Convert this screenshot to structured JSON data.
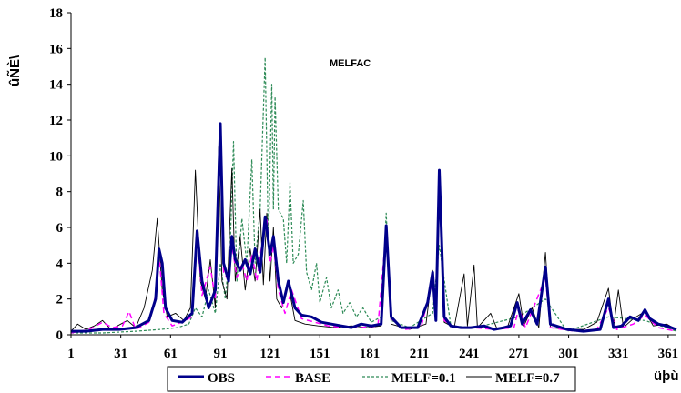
{
  "chart_data": {
    "type": "line",
    "ylabel": "ûÑÈ\\",
    "xlabel": "üþù",
    "annotation": "MELFAC",
    "ylim": [
      0,
      18
    ],
    "yticks": [
      0,
      2,
      4,
      6,
      8,
      10,
      12,
      14,
      16,
      18
    ],
    "xlim": [
      1,
      366
    ],
    "xticks": [
      1,
      31,
      61,
      91,
      121,
      151,
      181,
      211,
      241,
      271,
      301,
      331,
      361
    ],
    "legend_position": "bottom",
    "series": [
      {
        "name": "OBS",
        "color": "#00008B",
        "style": "solid-thick",
        "points": [
          [
            1,
            0.2
          ],
          [
            10,
            0.2
          ],
          [
            20,
            0.3
          ],
          [
            30,
            0.3
          ],
          [
            40,
            0.4
          ],
          [
            48,
            0.8
          ],
          [
            52,
            2.0
          ],
          [
            54,
            4.8
          ],
          [
            56,
            4.0
          ],
          [
            58,
            1.5
          ],
          [
            62,
            0.8
          ],
          [
            68,
            0.7
          ],
          [
            74,
            1.2
          ],
          [
            77,
            5.8
          ],
          [
            80,
            3.0
          ],
          [
            84,
            1.5
          ],
          [
            88,
            2.5
          ],
          [
            91,
            11.8
          ],
          [
            93,
            4.0
          ],
          [
            96,
            3.0
          ],
          [
            98,
            5.5
          ],
          [
            100,
            4.2
          ],
          [
            103,
            3.6
          ],
          [
            106,
            4.2
          ],
          [
            109,
            3.4
          ],
          [
            112,
            4.8
          ],
          [
            115,
            3.5
          ],
          [
            118,
            6.6
          ],
          [
            121,
            4.5
          ],
          [
            123,
            5.5
          ],
          [
            126,
            3.0
          ],
          [
            129,
            1.8
          ],
          [
            132,
            3.0
          ],
          [
            136,
            1.5
          ],
          [
            140,
            1.1
          ],
          [
            146,
            1.0
          ],
          [
            152,
            0.7
          ],
          [
            158,
            0.6
          ],
          [
            164,
            0.5
          ],
          [
            170,
            0.4
          ],
          [
            176,
            0.6
          ],
          [
            182,
            0.5
          ],
          [
            188,
            0.6
          ],
          [
            191,
            6.1
          ],
          [
            194,
            1.0
          ],
          [
            200,
            0.4
          ],
          [
            210,
            0.4
          ],
          [
            216,
            1.8
          ],
          [
            219,
            3.5
          ],
          [
            221,
            0.8
          ],
          [
            223,
            9.2
          ],
          [
            226,
            1.0
          ],
          [
            230,
            0.5
          ],
          [
            236,
            0.4
          ],
          [
            242,
            0.4
          ],
          [
            250,
            0.5
          ],
          [
            256,
            0.3
          ],
          [
            262,
            0.4
          ],
          [
            266,
            0.5
          ],
          [
            270,
            1.8
          ],
          [
            273,
            0.6
          ],
          [
            278,
            1.4
          ],
          [
            282,
            0.6
          ],
          [
            287,
            3.8
          ],
          [
            290,
            0.6
          ],
          [
            300,
            0.3
          ],
          [
            310,
            0.2
          ],
          [
            320,
            0.3
          ],
          [
            325,
            2.0
          ],
          [
            328,
            0.4
          ],
          [
            333,
            0.5
          ],
          [
            338,
            1.0
          ],
          [
            343,
            0.8
          ],
          [
            347,
            1.4
          ],
          [
            350,
            0.9
          ],
          [
            355,
            0.6
          ],
          [
            360,
            0.5
          ],
          [
            366,
            0.3
          ]
        ]
      },
      {
        "name": "BASE",
        "color": "#FF00FF",
        "style": "dashed",
        "points": [
          [
            1,
            0.1
          ],
          [
            12,
            0.3
          ],
          [
            20,
            0.7
          ],
          [
            26,
            0.4
          ],
          [
            32,
            0.5
          ],
          [
            36,
            1.3
          ],
          [
            40,
            0.3
          ],
          [
            48,
            0.7
          ],
          [
            52,
            2.2
          ],
          [
            54,
            4.5
          ],
          [
            57,
            1.2
          ],
          [
            62,
            0.5
          ],
          [
            70,
            0.8
          ],
          [
            74,
            1.0
          ],
          [
            77,
            5.5
          ],
          [
            80,
            2.2
          ],
          [
            85,
            3.8
          ],
          [
            88,
            2.0
          ],
          [
            91,
            11.8
          ],
          [
            93,
            3.5
          ],
          [
            96,
            3.0
          ],
          [
            98,
            5.0
          ],
          [
            101,
            3.2
          ],
          [
            104,
            4.0
          ],
          [
            107,
            3.0
          ],
          [
            110,
            4.5
          ],
          [
            113,
            3.0
          ],
          [
            116,
            5.0
          ],
          [
            119,
            6.5
          ],
          [
            121,
            4.0
          ],
          [
            123,
            5.0
          ],
          [
            126,
            2.5
          ],
          [
            130,
            1.2
          ],
          [
            134,
            2.5
          ],
          [
            140,
            0.9
          ],
          [
            148,
            0.7
          ],
          [
            156,
            0.5
          ],
          [
            166,
            0.4
          ],
          [
            176,
            0.4
          ],
          [
            186,
            0.5
          ],
          [
            191,
            5.8
          ],
          [
            194,
            0.9
          ],
          [
            202,
            0.3
          ],
          [
            212,
            0.4
          ],
          [
            219,
            3.0
          ],
          [
            221,
            0.8
          ],
          [
            223,
            8.9
          ],
          [
            226,
            0.8
          ],
          [
            232,
            0.4
          ],
          [
            244,
            0.4
          ],
          [
            256,
            0.3
          ],
          [
            268,
            0.4
          ],
          [
            271,
            1.5
          ],
          [
            275,
            0.4
          ],
          [
            287,
            3.2
          ],
          [
            290,
            0.4
          ],
          [
            305,
            0.2
          ],
          [
            318,
            0.3
          ],
          [
            325,
            1.5
          ],
          [
            330,
            0.3
          ],
          [
            340,
            0.6
          ],
          [
            347,
            1.1
          ],
          [
            355,
            0.4
          ],
          [
            366,
            0.2
          ]
        ]
      },
      {
        "name": "MELF=0.1",
        "color": "#2E8B57",
        "style": "dotted",
        "points": [
          [
            1,
            0.1
          ],
          [
            20,
            0.1
          ],
          [
            40,
            0.2
          ],
          [
            55,
            0.3
          ],
          [
            65,
            0.4
          ],
          [
            72,
            0.6
          ],
          [
            76,
            1.5
          ],
          [
            80,
            1.0
          ],
          [
            84,
            2.5
          ],
          [
            88,
            1.2
          ],
          [
            91,
            4.0
          ],
          [
            94,
            2.0
          ],
          [
            97,
            5.0
          ],
          [
            99,
            10.8
          ],
          [
            101,
            3.0
          ],
          [
            104,
            6.5
          ],
          [
            107,
            4.0
          ],
          [
            110,
            9.8
          ],
          [
            112,
            4.0
          ],
          [
            115,
            7.0
          ],
          [
            118,
            15.5
          ],
          [
            120,
            5.0
          ],
          [
            122,
            14.0
          ],
          [
            123,
            7.0
          ],
          [
            124,
            13.3
          ],
          [
            126,
            7.0
          ],
          [
            129,
            6.5
          ],
          [
            131,
            4.0
          ],
          [
            133,
            8.5
          ],
          [
            135,
            4.0
          ],
          [
            138,
            4.5
          ],
          [
            141,
            7.5
          ],
          [
            143,
            3.5
          ],
          [
            146,
            2.5
          ],
          [
            149,
            4.0
          ],
          [
            151,
            1.8
          ],
          [
            155,
            3.2
          ],
          [
            158,
            1.5
          ],
          [
            162,
            2.5
          ],
          [
            165,
            1.2
          ],
          [
            169,
            1.8
          ],
          [
            173,
            1.0
          ],
          [
            177,
            1.5
          ],
          [
            182,
            0.7
          ],
          [
            188,
            1.0
          ],
          [
            191,
            6.8
          ],
          [
            194,
            0.8
          ],
          [
            205,
            0.4
          ],
          [
            219,
            1.2
          ],
          [
            223,
            5.0
          ],
          [
            230,
            0.5
          ],
          [
            245,
            0.4
          ],
          [
            271,
            1.0
          ],
          [
            287,
            2.0
          ],
          [
            300,
            0.2
          ],
          [
            325,
            1.0
          ],
          [
            347,
            0.8
          ],
          [
            366,
            0.2
          ]
        ]
      },
      {
        "name": "MELF=0.7",
        "color": "#000000",
        "style": "solid-thin",
        "points": [
          [
            1,
            0.2
          ],
          [
            5,
            0.6
          ],
          [
            10,
            0.3
          ],
          [
            15,
            0.5
          ],
          [
            20,
            0.8
          ],
          [
            25,
            0.3
          ],
          [
            31,
            0.6
          ],
          [
            35,
            0.8
          ],
          [
            40,
            0.4
          ],
          [
            45,
            1.5
          ],
          [
            50,
            3.6
          ],
          [
            53,
            6.5
          ],
          [
            56,
            2.5
          ],
          [
            59,
            1.0
          ],
          [
            64,
            1.2
          ],
          [
            69,
            0.8
          ],
          [
            73,
            1.5
          ],
          [
            76,
            9.2
          ],
          [
            79,
            3.0
          ],
          [
            82,
            2.0
          ],
          [
            85,
            4.2
          ],
          [
            88,
            1.5
          ],
          [
            90,
            10.5
          ],
          [
            92,
            3.0
          ],
          [
            95,
            2.0
          ],
          [
            98,
            9.3
          ],
          [
            100,
            3.0
          ],
          [
            103,
            5.5
          ],
          [
            106,
            2.5
          ],
          [
            109,
            4.8
          ],
          [
            112,
            3.0
          ],
          [
            115,
            7.0
          ],
          [
            117,
            2.8
          ],
          [
            119,
            6.8
          ],
          [
            121,
            3.0
          ],
          [
            123,
            6.0
          ],
          [
            125,
            2.0
          ],
          [
            128,
            1.5
          ],
          [
            132,
            2.8
          ],
          [
            136,
            0.8
          ],
          [
            142,
            0.6
          ],
          [
            150,
            0.5
          ],
          [
            160,
            0.4
          ],
          [
            170,
            0.5
          ],
          [
            180,
            0.4
          ],
          [
            188,
            0.5
          ],
          [
            191,
            6.0
          ],
          [
            194,
            0.6
          ],
          [
            205,
            0.3
          ],
          [
            215,
            0.6
          ],
          [
            219,
            3.6
          ],
          [
            221,
            0.8
          ],
          [
            223,
            9.0
          ],
          [
            226,
            0.7
          ],
          [
            232,
            0.4
          ],
          [
            238,
            3.4
          ],
          [
            240,
            0.5
          ],
          [
            244,
            3.9
          ],
          [
            246,
            0.4
          ],
          [
            254,
            1.2
          ],
          [
            258,
            0.3
          ],
          [
            264,
            0.4
          ],
          [
            271,
            2.3
          ],
          [
            274,
            0.5
          ],
          [
            279,
            1.5
          ],
          [
            283,
            0.4
          ],
          [
            287,
            4.6
          ],
          [
            290,
            0.4
          ],
          [
            300,
            0.3
          ],
          [
            310,
            0.3
          ],
          [
            318,
            0.7
          ],
          [
            325,
            2.6
          ],
          [
            328,
            0.4
          ],
          [
            331,
            2.5
          ],
          [
            334,
            0.4
          ],
          [
            340,
            0.9
          ],
          [
            347,
            1.3
          ],
          [
            352,
            0.5
          ],
          [
            360,
            0.6
          ],
          [
            366,
            0.3
          ]
        ]
      }
    ]
  }
}
